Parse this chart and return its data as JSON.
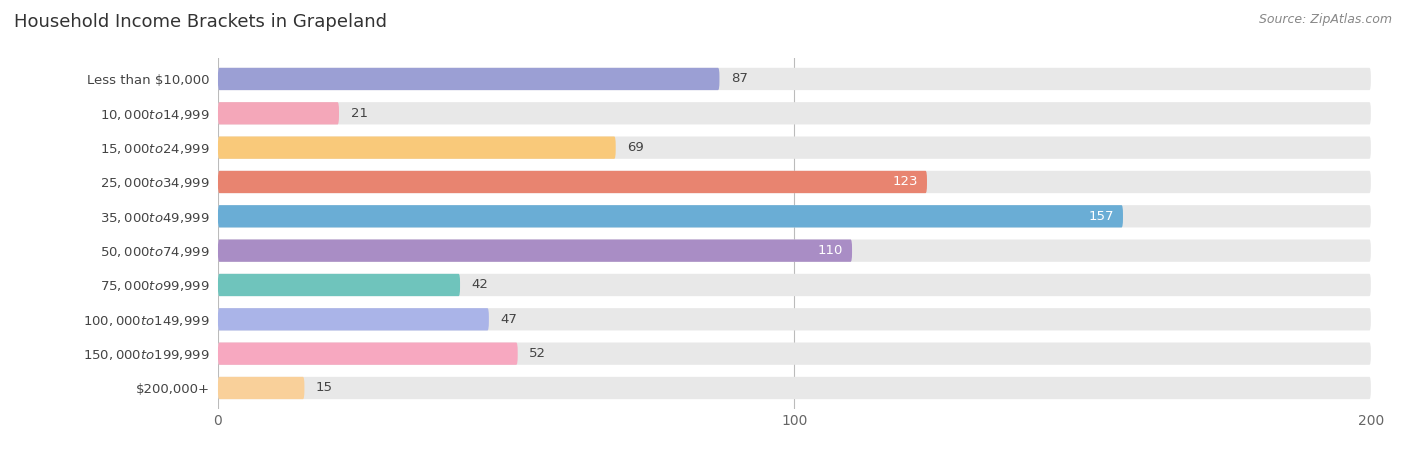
{
  "title": "Household Income Brackets in Grapeland",
  "source": "Source: ZipAtlas.com",
  "categories": [
    "Less than $10,000",
    "$10,000 to $14,999",
    "$15,000 to $24,999",
    "$25,000 to $34,999",
    "$35,000 to $49,999",
    "$50,000 to $74,999",
    "$75,000 to $99,999",
    "$100,000 to $149,999",
    "$150,000 to $199,999",
    "$200,000+"
  ],
  "values": [
    87,
    21,
    69,
    123,
    157,
    110,
    42,
    47,
    52,
    15
  ],
  "bar_colors": [
    "#9b9fd4",
    "#f4a7b9",
    "#f9c97a",
    "#e88470",
    "#6aadd5",
    "#a98dc5",
    "#6fc4bc",
    "#aab4e8",
    "#f7a8c0",
    "#f9d09a"
  ],
  "label_colors": [
    "#555555",
    "#555555",
    "#555555",
    "#ffffff",
    "#ffffff",
    "#555555",
    "#555555",
    "#555555",
    "#555555",
    "#555555"
  ],
  "xlim": [
    0,
    200
  ],
  "xticks": [
    0,
    100,
    200
  ],
  "background_color": "#ffffff",
  "bar_bg_color": "#e8e8e8",
  "title_fontsize": 13,
  "source_fontsize": 9,
  "label_fontsize": 9.5,
  "tick_fontsize": 10,
  "cat_fontsize": 9.5
}
